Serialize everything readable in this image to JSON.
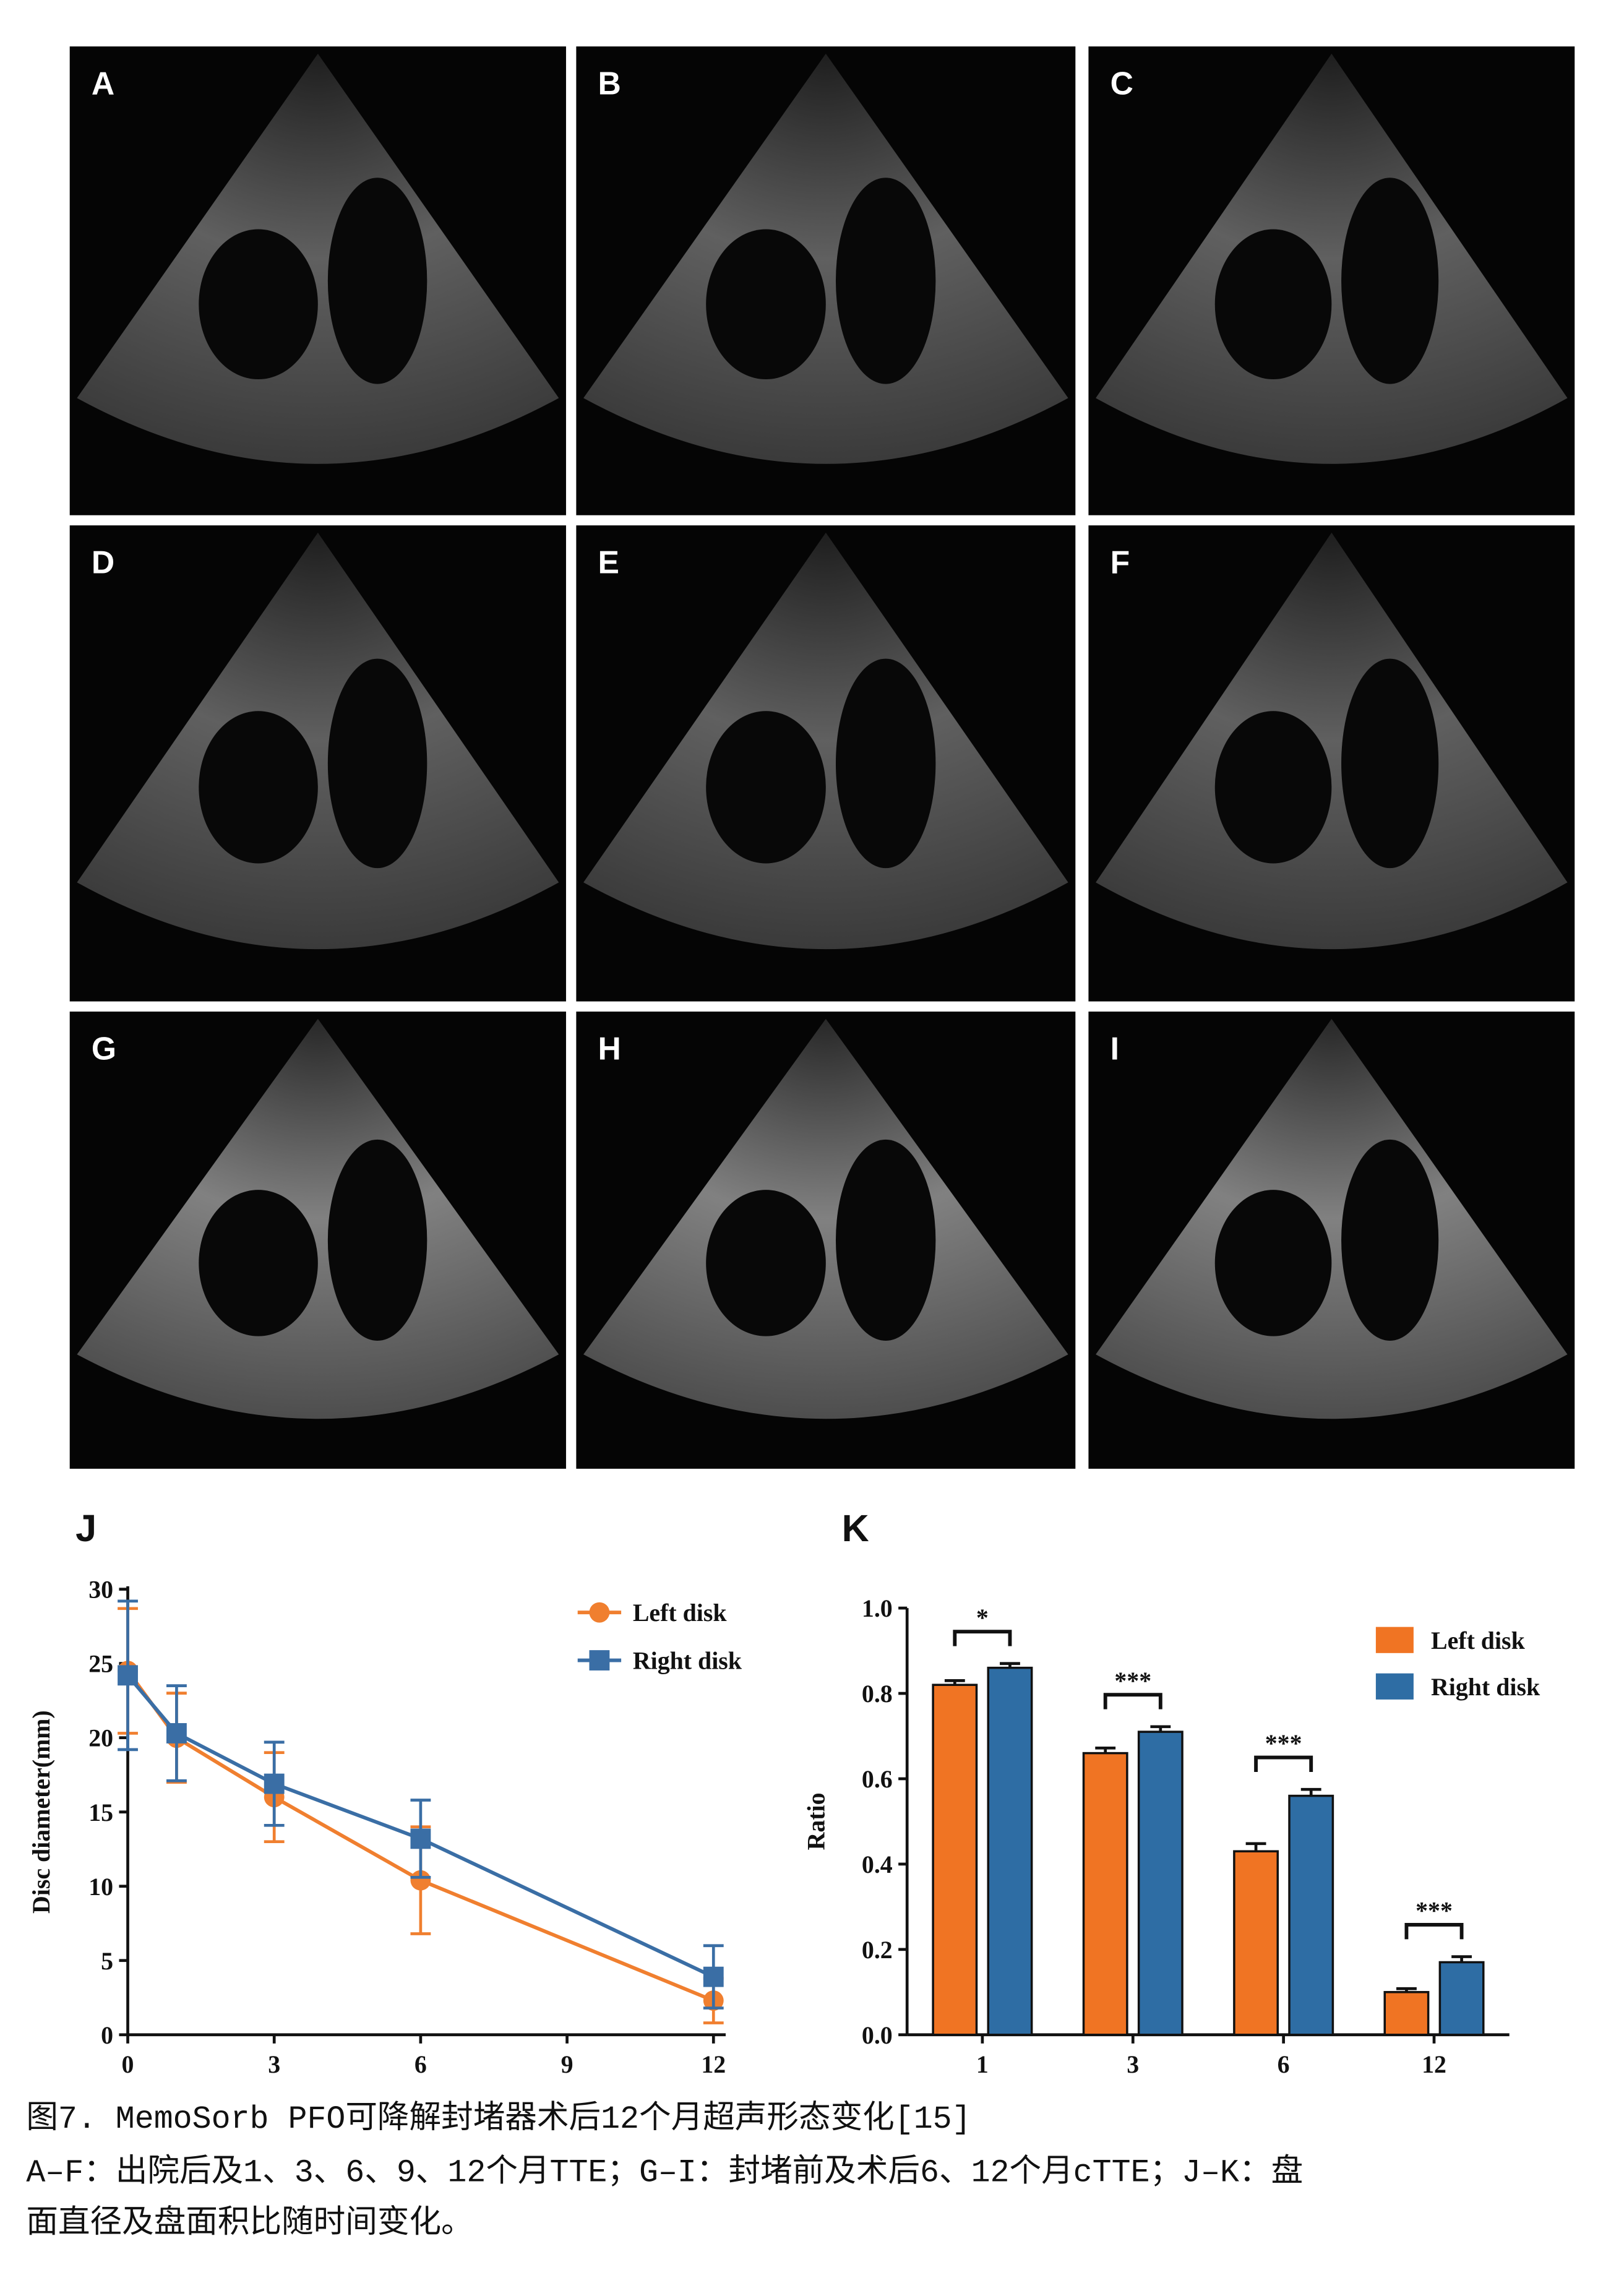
{
  "panels": [
    "A",
    "B",
    "C",
    "D",
    "E",
    "F",
    "G",
    "H",
    "I"
  ],
  "chart_data": [
    {
      "type": "line",
      "title": "J",
      "ylabel": "Disc diameter(mm)",
      "x": [
        0,
        1,
        3,
        6,
        12
      ],
      "xlim": [
        0,
        12.25
      ],
      "xticks": [
        0,
        3,
        6,
        9,
        12
      ],
      "ylim": [
        0,
        30
      ],
      "yticks": [
        0,
        5,
        10,
        15,
        20,
        25,
        30
      ],
      "legend": "upper right",
      "series": [
        {
          "name": "Left disk",
          "color": "#f07f2f",
          "marker": "circle",
          "values": [
            24.5,
            20,
            16,
            10.4,
            2.3
          ],
          "errors": [
            4.2,
            3,
            3,
            3.6,
            1.5
          ]
        },
        {
          "name": "Right disk",
          "color": "#3a6ea5",
          "marker": "square",
          "values": [
            24.2,
            20.3,
            16.9,
            13.2,
            3.9
          ],
          "errors": [
            5,
            3.2,
            2.8,
            2.6,
            2.1
          ]
        }
      ]
    },
    {
      "type": "bar",
      "title": "K",
      "ylabel": "Ratio",
      "categories": [
        "1",
        "3",
        "6",
        "12"
      ],
      "ylim": [
        0,
        1
      ],
      "yticks": [
        {
          "value": 0,
          "label": "0.0"
        },
        0.2,
        0.4,
        0.6,
        0.8,
        {
          "value": 1,
          "label": "1.0"
        }
      ],
      "legend": "upper right",
      "significance": [
        "*",
        "***",
        "***",
        "***"
      ],
      "series": [
        {
          "name": "Left disk",
          "color": "#f07423",
          "values": [
            0.82,
            0.66,
            0.43,
            0.1
          ],
          "errors": [
            0.01,
            0.012,
            0.018,
            0.008
          ]
        },
        {
          "name": "Right disk",
          "color": "#2e6da4",
          "values": [
            0.86,
            0.71,
            0.56,
            0.17
          ],
          "errors": [
            0.01,
            0.012,
            0.015,
            0.013
          ]
        }
      ]
    }
  ],
  "caption": [
    "图7. MemoSorb PFO可降解封堵器术后12个月超声形态变化[15]",
    "A–F：出院后及1、3、6、9、12个月TTE；G–I：封堵前及术后6、12个月cTTE；J–K：盘",
    "面直径及盘面积比随时间变化。"
  ]
}
